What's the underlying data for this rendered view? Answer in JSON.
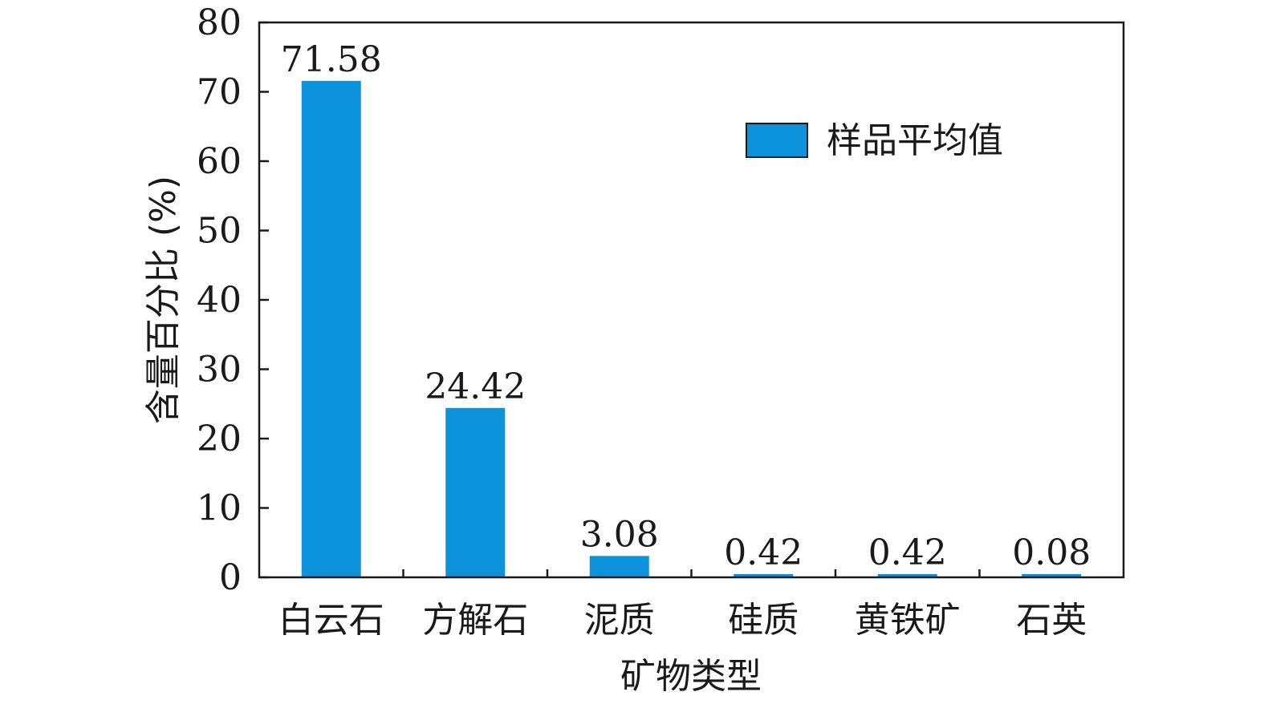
{
  "chart_data": {
    "type": "bar",
    "title": "",
    "xlabel": "矿物类型",
    "ylabel": "含量百分比 (%)",
    "categories": [
      "白云石",
      "方解石",
      "泥质",
      "硅质",
      "黄铁矿",
      "石英"
    ],
    "series": [
      {
        "name": "样品平均值",
        "values": [
          71.58,
          24.42,
          3.08,
          0.42,
          0.42,
          0.08
        ],
        "data_labels": [
          "71.58",
          "24.42",
          "3.08",
          "0.42",
          "0.42",
          "0.08"
        ],
        "color": "#0d92dc"
      }
    ],
    "ylim": [
      0,
      80
    ],
    "yticks": [
      "0",
      "10",
      "20",
      "30",
      "40",
      "50",
      "60",
      "70",
      "80"
    ],
    "grid": false,
    "legend_position": "top-right"
  }
}
